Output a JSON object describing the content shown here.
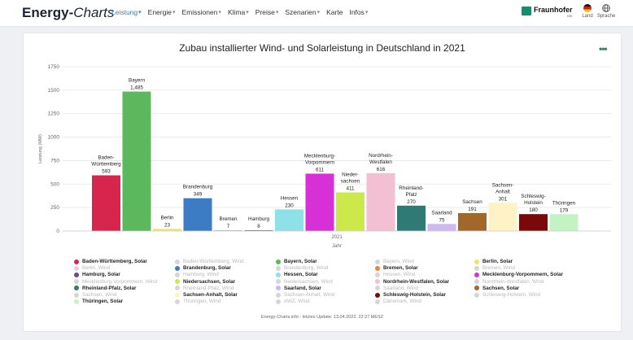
{
  "header": {
    "brand_bold": "Energy-",
    "brand_italic": "Charts",
    "nav": [
      {
        "label": "Leistung",
        "active": true
      },
      {
        "label": "Energie",
        "active": false
      },
      {
        "label": "Emissionen",
        "active": false
      },
      {
        "label": "Klima",
        "active": false
      },
      {
        "label": "Preise",
        "active": false
      },
      {
        "label": "Szenarien",
        "active": false
      },
      {
        "label": "Karte",
        "active": false,
        "nochev": true
      },
      {
        "label": "Infos",
        "active": false
      }
    ],
    "fraunhofer": "Fraunhofer",
    "fraunhofer_sub": "ISE",
    "land_label": "Land",
    "sprache_label": "Sprache"
  },
  "chart_data": {
    "type": "bar",
    "title": "Zubau installierter Wind- und Solarleistung in Deutschland in 2021",
    "ylabel": "Leistung (MW)",
    "xlabel": "Jahr",
    "x_category": "2021",
    "ylim": [
      0,
      1750
    ],
    "yticks": [
      0,
      250,
      500,
      750,
      1000,
      1250,
      1500,
      1750
    ],
    "grid": true,
    "series": [
      {
        "name": "Baden-Württemberg, Solar",
        "label": "Baden-\nWürttemberg",
        "value": 593,
        "color": "#d7264e"
      },
      {
        "name": "Bayern, Solar",
        "label": "Bayern",
        "value": 1485,
        "color": "#5cb85c"
      },
      {
        "name": "Berlin, Solar",
        "label": "Berlin",
        "value": 23,
        "color": "#f3e45b"
      },
      {
        "name": "Brandenburg, Solar",
        "label": "Brandenburg",
        "value": 349,
        "color": "#3b7cc4"
      },
      {
        "name": "Bremen, Solar",
        "label": "Bremen",
        "value": 7,
        "color": "#e8853a"
      },
      {
        "name": "Hamburg, Solar",
        "label": "Hamburg",
        "value": 8,
        "color": "#7a3e9d"
      },
      {
        "name": "Hessen, Solar",
        "label": "Hessen",
        "value": 230,
        "color": "#8ee1e6"
      },
      {
        "name": "Mecklenburg-Vorpommern, Solar",
        "label": "Mecklenburg-\nVorpommern",
        "value": 611,
        "color": "#d630d6"
      },
      {
        "name": "Niedersachsen, Solar",
        "label": "Nieder-\nsachsen",
        "value": 411,
        "color": "#cde84a"
      },
      {
        "name": "Nordrhein-Westfalen, Solar",
        "label": "Nordrhein-\nWestfalen",
        "value": 616,
        "color": "#f3bfd2"
      },
      {
        "name": "Rheinland-Pfalz, Solar",
        "label": "Rheinland-\nPfalz",
        "value": 270,
        "color": "#2f7a72"
      },
      {
        "name": "Saarland, Solar",
        "label": "Saarland",
        "value": 75,
        "color": "#cdb8ef"
      },
      {
        "name": "Sachsen, Solar",
        "label": "Sachsen",
        "value": 191,
        "color": "#a0692a"
      },
      {
        "name": "Sachsen-Anhalt, Solar",
        "label": "Sachsen-\nAnhalt",
        "value": 301,
        "color": "#fdf3c4"
      },
      {
        "name": "Schleswig-Holstein, Solar",
        "label": "Schleswig-\nHolstein",
        "value": 180,
        "color": "#7a0a0a"
      },
      {
        "name": "Thüringen, Solar",
        "label": "Thüringen",
        "value": 179,
        "color": "#c3f2c3"
      }
    ]
  },
  "legend": [
    {
      "label": "Baden-Württemberg, Solar",
      "color": "#d7264e",
      "active": true
    },
    {
      "label": "Baden-Württemberg, Wind",
      "color": "#d6d6d6",
      "active": false
    },
    {
      "label": "Bayern, Solar",
      "color": "#5cb85c",
      "active": true
    },
    {
      "label": "Bayern, Wind",
      "color": "#d6d6d6",
      "active": false
    },
    {
      "label": "Berlin, Solar",
      "color": "#f3e45b",
      "active": true
    },
    {
      "label": "Berlin, Wind",
      "color": "#d6d6d6",
      "active": false
    },
    {
      "label": "Brandenburg, Solar",
      "color": "#3b7cc4",
      "active": true
    },
    {
      "label": "Brandenburg, Wind",
      "color": "#d6d6d6",
      "active": false
    },
    {
      "label": "Bremen, Solar",
      "color": "#e8853a",
      "active": true
    },
    {
      "label": "Bremen, Wind",
      "color": "#d6d6d6",
      "active": false
    },
    {
      "label": "Hamburg, Solar",
      "color": "#7a3e9d",
      "active": true
    },
    {
      "label": "Hamburg, Wind",
      "color": "#d6d6d6",
      "active": false
    },
    {
      "label": "Hessen, Solar",
      "color": "#8ee1e6",
      "active": true
    },
    {
      "label": "Hessen, Wind",
      "color": "#d6d6d6",
      "active": false
    },
    {
      "label": "Mecklenburg-Vorpommern, Solar",
      "color": "#d630d6",
      "active": true
    },
    {
      "label": "Mecklenburg-Vorpommern, Wind",
      "color": "#d6d6d6",
      "active": false
    },
    {
      "label": "Niedersachsen, Solar",
      "color": "#cde84a",
      "active": true
    },
    {
      "label": "Niedersachsen, Wind",
      "color": "#d6d6d6",
      "active": false
    },
    {
      "label": "Nordrhein-Westfalen, Solar",
      "color": "#f3bfd2",
      "active": true
    },
    {
      "label": "Nordrhein-Westfalen, Wind",
      "color": "#d6d6d6",
      "active": false
    },
    {
      "label": "Rheinland-Pfalz, Solar",
      "color": "#2f7a72",
      "active": true
    },
    {
      "label": "Rheinland-Pfalz, Wind",
      "color": "#d6d6d6",
      "active": false
    },
    {
      "label": "Saarland, Solar",
      "color": "#cdb8ef",
      "active": true
    },
    {
      "label": "Saarland, Wind",
      "color": "#d6d6d6",
      "active": false
    },
    {
      "label": "Sachsen, Solar",
      "color": "#a0692a",
      "active": true
    },
    {
      "label": "Sachsen, Wind",
      "color": "#d6d6d6",
      "active": false
    },
    {
      "label": "Sachsen-Anhalt, Solar",
      "color": "#fdf3c4",
      "active": true
    },
    {
      "label": "Sachsen-Anhalt, Wind",
      "color": "#d6d6d6",
      "active": false
    },
    {
      "label": "Schleswig-Holstein, Solar",
      "color": "#7a0a0a",
      "active": true
    },
    {
      "label": "Schleswig-Holstein, Wind",
      "color": "#d6d6d6",
      "active": false
    },
    {
      "label": "Thüringen, Solar",
      "color": "#c3f2c3",
      "active": true
    },
    {
      "label": "Thüringen, Wind",
      "color": "#d6d6d6",
      "active": false
    },
    {
      "label": "AWZ, Wind",
      "color": "#d6d6d6",
      "active": false
    },
    {
      "label": "Dänemark, Wind",
      "color": "#d6d6d6",
      "active": false
    }
  ],
  "footer": "Energy-Charts.info - letztes Update: 13.04.2022, 22:27 MESZ"
}
